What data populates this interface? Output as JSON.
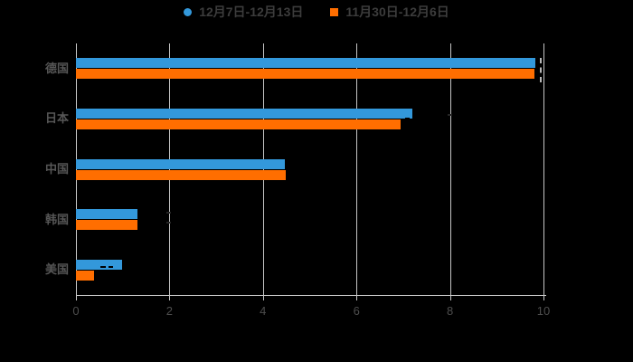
{
  "background_color": "#000000",
  "legend": {
    "items": [
      {
        "label": "12月7日-12月13日",
        "color": "#3398DB",
        "shape": "circle"
      },
      {
        "label": "11月30日-12月6日",
        "color": "#FF6E00",
        "shape": "square"
      }
    ]
  },
  "chart_data": {
    "type": "bar",
    "orientation": "horizontal",
    "title": "",
    "xlabel": "",
    "ylabel": "",
    "categories": [
      "德国",
      "日本",
      "中国",
      "韩国",
      "美国"
    ],
    "series": [
      {
        "name": "12月7日-12月13日",
        "color": "#3398DB",
        "values": [
          9.82,
          7.2,
          4.46,
          1.32,
          0.99
        ]
      },
      {
        "name": "11月30日-12月6日",
        "color": "#FF6E00",
        "values": [
          9.8,
          6.94,
          4.48,
          1.31,
          0.38
        ]
      }
    ],
    "xlim": [
      0,
      10
    ],
    "x_ticks": [
      "0",
      "2",
      "4",
      "6",
      "8",
      "10"
    ],
    "grid": true,
    "legend_position": "top",
    "colors": {
      "gridline": "#c6c6c6",
      "axis_line": "#c9c9c9",
      "tick_label": "#4d4d4d",
      "category_label": "#565656",
      "legend_text": "#3c3c3c"
    }
  }
}
